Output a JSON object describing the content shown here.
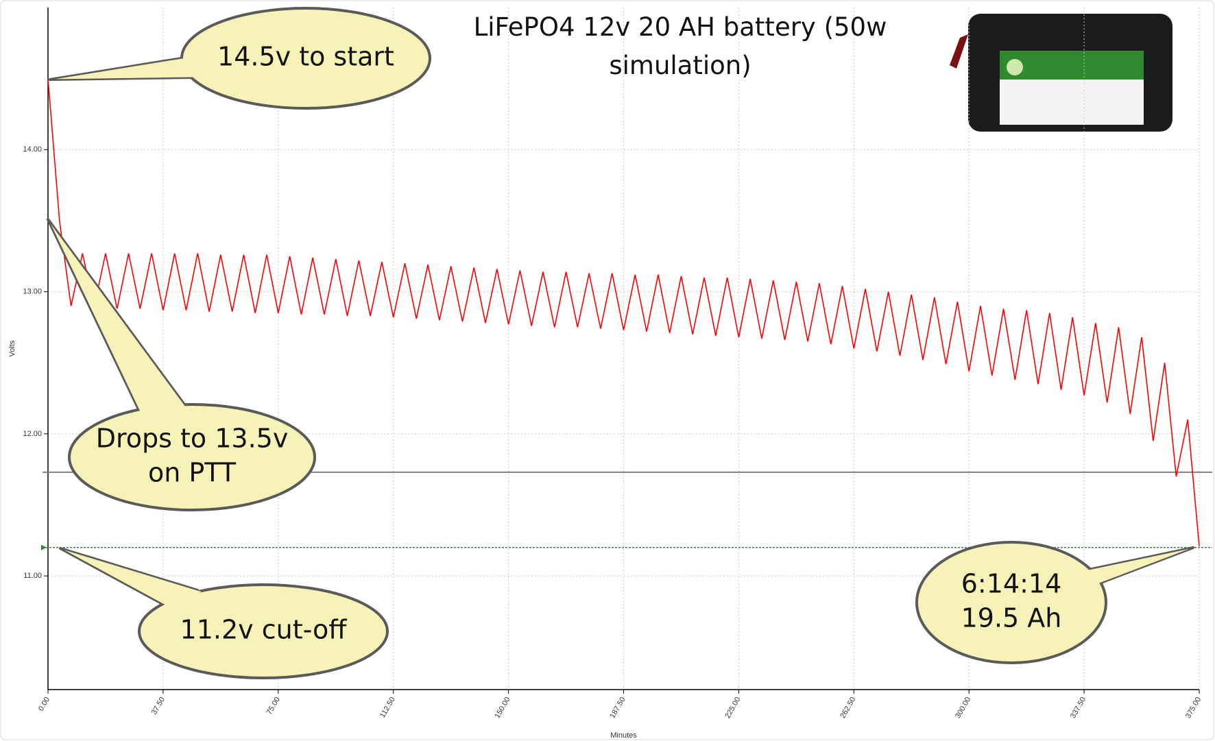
{
  "chart_data": {
    "type": "line",
    "title": "LiFePO4 12v 20 AH battery (50w simulation)",
    "x_label": "Minutes",
    "y_label": "Volts",
    "color": "#ff0000",
    "xlim": [
      0,
      375
    ],
    "ylim": [
      10.2,
      15.0
    ],
    "xticks": [
      {
        "value": 0,
        "label": "0.00"
      },
      {
        "value": 37.5,
        "label": "37.50"
      },
      {
        "value": 75,
        "label": "75.00"
      },
      {
        "value": 112.5,
        "label": "112.50"
      },
      {
        "value": 150,
        "label": "150.00"
      },
      {
        "value": 187.5,
        "label": "187.50"
      },
      {
        "value": 225,
        "label": "225.00"
      },
      {
        "value": 262.5,
        "label": "262.50"
      },
      {
        "value": 300,
        "label": "300.00"
      },
      {
        "value": 337.5,
        "label": "337.50"
      },
      {
        "value": 375,
        "label": "375.00"
      }
    ],
    "yticks": [
      {
        "value": 11,
        "label": "11.00"
      },
      {
        "value": 12,
        "label": "12.00"
      },
      {
        "value": 13,
        "label": "13.00"
      },
      {
        "value": 14,
        "label": "14.00"
      }
    ],
    "grid": true,
    "x": [
      0,
      3.75,
      7.5,
      11.25,
      15,
      18.75,
      22.5,
      26.25,
      30,
      33.75,
      37.5,
      41.25,
      45,
      48.75,
      52.5,
      56.25,
      60,
      63.75,
      67.5,
      71.25,
      75,
      78.75,
      82.5,
      86.25,
      90,
      93.75,
      97.5,
      101.25,
      105,
      108.75,
      112.5,
      116.25,
      120,
      123.75,
      127.5,
      131.25,
      135,
      138.75,
      142.5,
      146.25,
      150,
      153.75,
      157.5,
      161.25,
      165,
      168.75,
      172.5,
      176.25,
      180,
      183.75,
      187.5,
      191.25,
      195,
      198.75,
      202.5,
      206.25,
      210,
      213.75,
      217.5,
      221.25,
      225,
      228.75,
      232.5,
      236.25,
      240,
      243.75,
      247.5,
      251.25,
      255,
      258.75,
      262.5,
      266.25,
      270,
      273.75,
      277.5,
      281.25,
      285,
      288.75,
      292.5,
      296.25,
      300,
      303.75,
      307.5,
      311.25,
      315,
      318.75,
      322.5,
      326.25,
      330,
      333.75,
      337.5,
      341.25,
      345,
      348.75,
      352.5,
      356.25,
      360,
      363.75,
      367.5,
      371.25,
      375
    ],
    "values": [
      14.5,
      13.5,
      12.9,
      13.27,
      12.89,
      13.27,
      12.88,
      13.27,
      12.88,
      13.27,
      12.87,
      13.27,
      12.87,
      13.27,
      12.86,
      13.26,
      12.86,
      13.26,
      12.85,
      13.26,
      12.85,
      13.25,
      12.84,
      13.24,
      12.84,
      13.23,
      12.83,
      13.22,
      12.83,
      13.21,
      12.82,
      13.2,
      12.81,
      13.19,
      12.8,
      13.18,
      12.79,
      13.17,
      12.78,
      13.16,
      12.77,
      13.15,
      12.76,
      13.14,
      12.75,
      13.14,
      12.75,
      13.13,
      12.74,
      13.13,
      12.73,
      13.12,
      12.72,
      13.12,
      12.71,
      13.11,
      12.7,
      13.1,
      12.69,
      13.1,
      12.68,
      13.09,
      12.67,
      13.08,
      12.66,
      13.07,
      12.65,
      13.06,
      12.63,
      13.04,
      12.6,
      13.02,
      12.58,
      13.0,
      12.55,
      12.98,
      12.52,
      12.96,
      12.49,
      12.93,
      12.44,
      12.9,
      12.41,
      12.88,
      12.38,
      12.87,
      12.35,
      12.85,
      12.31,
      12.82,
      12.27,
      12.78,
      12.22,
      12.75,
      12.14,
      12.68,
      11.95,
      12.5,
      11.7,
      12.1,
      11.21
    ],
    "hlines": [
      {
        "value": 11.73,
        "color": "#808080",
        "style": "solid"
      },
      {
        "value": 11.2,
        "color": "#2e8b2e",
        "style": "dotted"
      }
    ],
    "annotations": [
      {
        "lines": [
          "14.5v to start"
        ]
      },
      {
        "lines": [
          "Drops to 13.5v",
          "on PTT"
        ]
      },
      {
        "lines": [
          "11.2v cut-off"
        ]
      },
      {
        "lines": [
          "6:14:14",
          "19.5 Ah"
        ]
      }
    ]
  }
}
